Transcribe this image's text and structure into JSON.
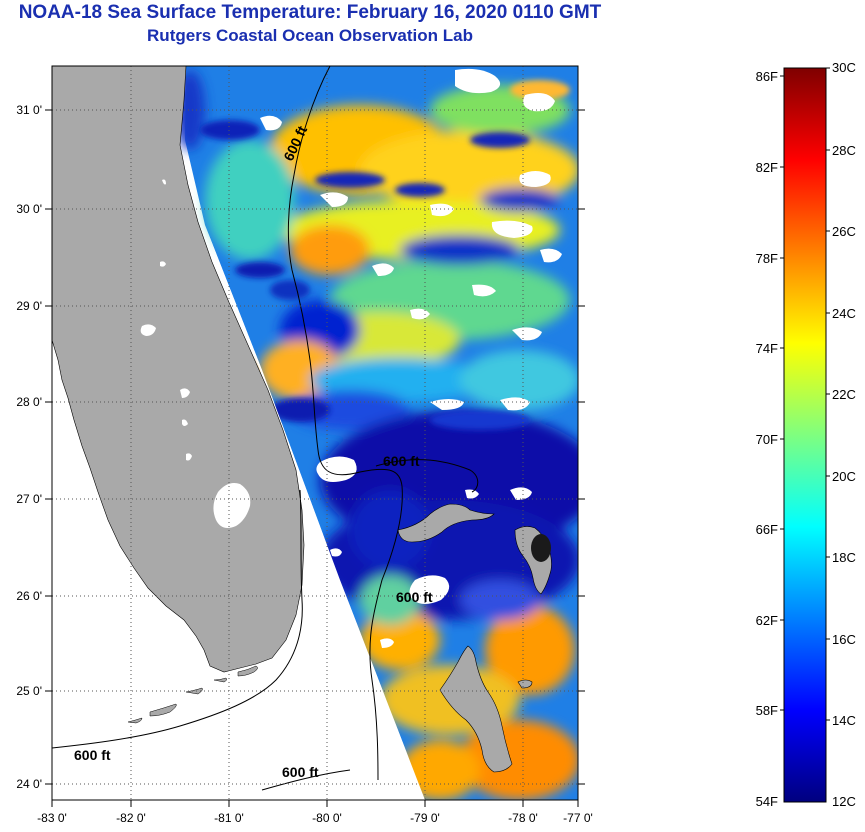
{
  "header": {
    "title": "NOAA-18 Sea Surface Temperature:  February 16, 2020 0110 GMT",
    "subtitle": "Rutgers Coastal Ocean Observation Lab"
  },
  "map": {
    "lon_ticks": [
      "-83 0'",
      "-82 0'",
      "-81 0'",
      "-80 0'",
      "-79 0'",
      "-78 0'",
      "-77 0'"
    ],
    "lat_ticks": [
      "24 0'",
      "25 0'",
      "26 0'",
      "27 0'",
      "28 0'",
      "29 0'",
      "30 0'",
      "31 0'"
    ],
    "isobath_labels": [
      "600 ft",
      "600 ft",
      "600 ft",
      "600 ft",
      "600 ft"
    ],
    "colors": {
      "land": "#a9a9a9",
      "cloud": "#ffffff",
      "gap": "#ffffff"
    }
  },
  "colorbar": {
    "fahrenheit": [
      "86F",
      "82F",
      "78F",
      "74F",
      "70F",
      "66F",
      "62F",
      "58F",
      "54F"
    ],
    "celsius": [
      "30C",
      "28C",
      "26C",
      "24C",
      "22C",
      "20C",
      "18C",
      "16C",
      "14C",
      "12C"
    ],
    "stops": [
      "#00007f",
      "#0000ff",
      "#007fff",
      "#00ffff",
      "#7fff7f",
      "#ffff00",
      "#ff7f00",
      "#ff0000",
      "#7f0000"
    ]
  }
}
